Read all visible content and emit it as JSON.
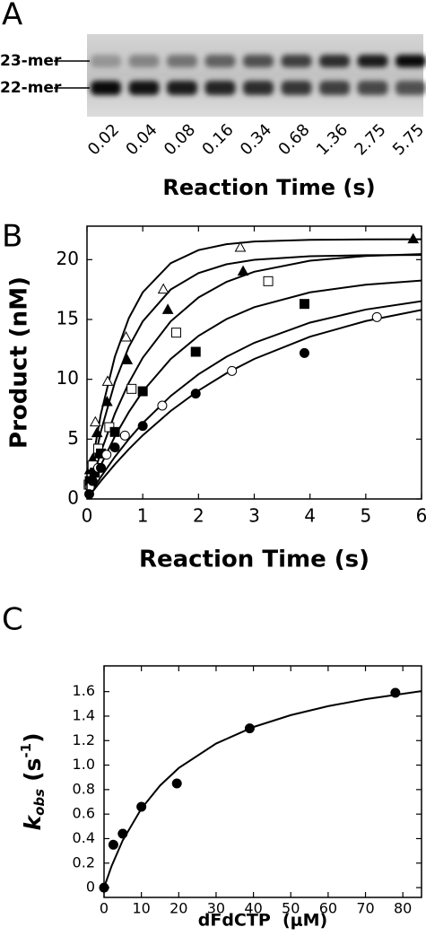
{
  "gel": {
    "panel_label": "A",
    "bands": [
      "23-mer",
      "22-mer"
    ],
    "lanes": [
      0.02,
      0.04,
      0.08,
      0.16,
      0.34,
      0.68,
      1.36,
      2.75,
      5.75
    ],
    "x_label": "Reaction Time (s)"
  },
  "chart_data": [
    {
      "type": "scatter",
      "panel_label": "B",
      "x_label": "Reaction Time (s)",
      "y_label": "Product (nM)",
      "xlim": [
        0,
        6
      ],
      "ylim": [
        0,
        22.8
      ],
      "xticks": [
        0,
        1,
        2,
        3,
        4,
        5,
        6
      ],
      "yticks": [
        0,
        5,
        10,
        15,
        20
      ],
      "color": "#000000",
      "series": [
        {
          "marker": "triangle-open",
          "x": [
            0.1,
            0.15,
            0.37,
            0.7,
            1.37,
            2.75
          ],
          "values": [
            2.8,
            6.4,
            9.8,
            13.5,
            17.5,
            21.0
          ]
        },
        {
          "marker": "triangle-filled",
          "x": [
            0.05,
            0.1,
            0.18,
            0.36,
            0.72,
            1.45,
            2.8,
            5.85
          ],
          "values": [
            2.4,
            3.3,
            5.5,
            8.1,
            11.6,
            15.8,
            19.0,
            21.7
          ]
        },
        {
          "marker": "square-open",
          "x": [
            0.03,
            0.1,
            0.2,
            0.4,
            0.8,
            1.6,
            3.25
          ],
          "values": [
            1.2,
            2.8,
            4.2,
            6.0,
            9.2,
            13.9,
            18.2
          ]
        },
        {
          "marker": "square-filled",
          "x": [
            0.05,
            0.14,
            0.25,
            0.5,
            1.0,
            1.95,
            3.9
          ],
          "values": [
            1.5,
            2.2,
            3.8,
            5.6,
            9.0,
            12.3,
            16.3
          ]
        },
        {
          "marker": "circle-open",
          "x": [
            0.05,
            0.2,
            0.35,
            0.68,
            1.35,
            2.6,
            5.2
          ],
          "values": [
            1.0,
            2.6,
            3.7,
            5.3,
            7.8,
            10.7,
            15.2
          ]
        },
        {
          "marker": "circle-filled",
          "x": [
            0.04,
            0.1,
            0.25,
            0.5,
            1.0,
            1.95,
            3.9
          ],
          "values": [
            0.4,
            1.5,
            2.6,
            4.3,
            6.1,
            8.8,
            12.2
          ]
        }
      ],
      "fit_x": [
        0,
        0.1,
        0.25,
        0.5,
        0.75,
        1,
        1.5,
        2,
        2.5,
        3,
        4,
        5,
        6
      ],
      "fits": [
        {
          "values": [
            0,
            3.19,
            7.12,
            11.89,
            15.11,
            17.27,
            19.7,
            20.8,
            21.29,
            21.52,
            21.66,
            21.69,
            21.7
          ]
        },
        {
          "values": [
            0,
            2.49,
            5.66,
            9.75,
            12.71,
            14.84,
            17.5,
            18.88,
            19.61,
            19.99,
            20.29,
            20.37,
            20.39
          ]
        },
        {
          "values": [
            0,
            1.68,
            3.94,
            7.13,
            9.71,
            11.8,
            14.84,
            16.84,
            18.14,
            18.99,
            19.91,
            20.31,
            20.47
          ]
        },
        {
          "values": [
            0,
            1.19,
            2.83,
            5.23,
            7.26,
            8.99,
            11.69,
            13.63,
            15.03,
            16.03,
            17.27,
            17.91,
            18.25
          ]
        },
        {
          "values": [
            0,
            0.77,
            1.85,
            3.52,
            5.0,
            6.34,
            8.6,
            10.42,
            11.88,
            13.05,
            14.74,
            15.83,
            16.53
          ]
        },
        {
          "values": [
            0,
            0.62,
            1.51,
            2.89,
            4.16,
            5.32,
            7.35,
            9.06,
            10.5,
            11.7,
            13.56,
            14.87,
            15.8
          ]
        }
      ]
    },
    {
      "type": "scatter",
      "panel_label": "C",
      "x_label": "dFdCTP  (μM)",
      "y_label": {
        "symbol": "k",
        "subscript": "obs",
        "unit": "(s",
        "superscript": "-1",
        "close": ")"
      },
      "xlim": [
        0,
        85
      ],
      "ylim": [
        -0.08,
        1.81
      ],
      "xticks": [
        0,
        10,
        20,
        30,
        40,
        50,
        60,
        70,
        80
      ],
      "yticks": [
        0,
        0.2,
        0.4,
        0.6,
        0.8,
        {
          "value": 1,
          "label": "1.0"
        },
        1.2,
        1.4,
        1.6
      ],
      "color": "#000000",
      "series": [
        {
          "marker": "circle-filled",
          "x": [
            0,
            2.5,
            5,
            10,
            19.5,
            39,
            78
          ],
          "values": [
            0,
            0.35,
            0.44,
            0.66,
            0.85,
            1.3,
            1.59
          ]
        }
      ],
      "fit_x": [
        0,
        2,
        5,
        10,
        15,
        20,
        30,
        40,
        50,
        60,
        70,
        85
      ],
      "fits": [
        {
          "values": [
            0,
            0.174,
            0.385,
            0.645,
            0.833,
            0.976,
            1.176,
            1.311,
            1.408,
            1.481,
            1.538,
            1.604
          ]
        }
      ]
    }
  ]
}
